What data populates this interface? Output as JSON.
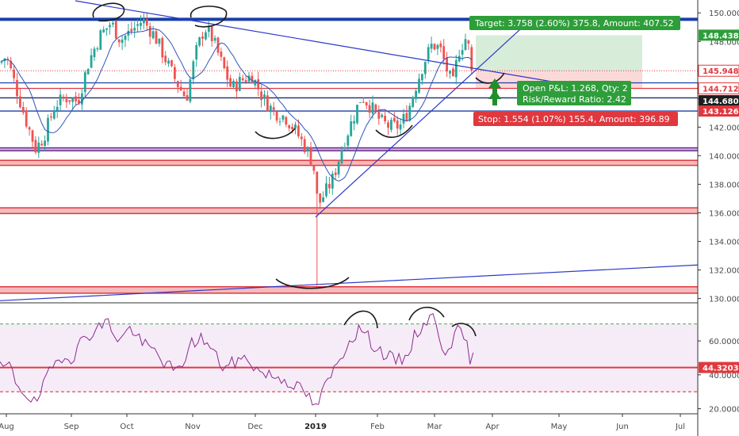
{
  "chart_data": {
    "type": "candlestick",
    "price_axis": {
      "ylim": [
        129.7,
        150.9
      ],
      "ticks": [
        "150.0000",
        "148.0000",
        "146.0000",
        "144.0000",
        "142.0000",
        "140.0000",
        "138.0000",
        "136.0000",
        "134.0000",
        "132.0000",
        "130.0000"
      ],
      "tick_values": [
        150,
        148,
        146,
        144,
        142,
        140,
        138,
        136,
        134,
        132,
        130
      ]
    },
    "rsi_axis": {
      "ylim": [
        17,
        82
      ],
      "ticks": [
        "60.0000",
        "40.0000",
        "20.0000"
      ],
      "tick_values": [
        60,
        40,
        20
      ],
      "upper_band": 70,
      "lower_band": 30
    },
    "x_axis": {
      "ticks": [
        {
          "label": "Aug",
          "bold": false
        },
        {
          "label": "Sep",
          "bold": false
        },
        {
          "label": "Oct",
          "bold": false
        },
        {
          "label": "Nov",
          "bold": false
        },
        {
          "label": "Dec",
          "bold": false
        },
        {
          "label": "2019",
          "bold": true
        },
        {
          "label": "Feb",
          "bold": false
        },
        {
          "label": "Mar",
          "bold": false
        },
        {
          "label": "Apr",
          "bold": false
        },
        {
          "label": "May",
          "bold": false
        },
        {
          "label": "Jun",
          "bold": false
        },
        {
          "label": "Jul",
          "bold": false
        }
      ]
    },
    "price_tags": [
      {
        "label": "148.438",
        "value": 148.438,
        "bg": "#2e9e3a",
        "fg": "#ffffff"
      },
      {
        "label": "145.948",
        "value": 145.948,
        "bg": "#ffffff",
        "fg": "#e0383e",
        "border": "#e0383e"
      },
      {
        "label": "144.712",
        "value": 144.712,
        "bg": "#ffffff",
        "fg": "#e0383e",
        "border": "#e0383e"
      },
      {
        "label": "144.680",
        "value": 143.85,
        "bg": "#1e1e1e",
        "fg": "#ffffff"
      },
      {
        "label": "143.126",
        "value": 143.126,
        "bg": "#e0383e",
        "fg": "#ffffff"
      }
    ],
    "rsi_tag": {
      "label": "44.3203",
      "value": 44.3203,
      "bg": "#e0383e",
      "fg": "#ffffff"
    },
    "horizontal_levels": [
      {
        "value": 149.55,
        "color": "#1a3fa8",
        "kind": "thick"
      },
      {
        "value": 145.1,
        "color": "#1a3fa8",
        "kind": "line"
      },
      {
        "value": 144.712,
        "color": "#e0383e",
        "kind": "line"
      },
      {
        "value": 144.05,
        "color": "#1e2a6e",
        "kind": "line"
      },
      {
        "value": 143.126,
        "color": "#1a3fa8",
        "kind": "line"
      },
      {
        "value": 140.45,
        "color": "#6b2a8f",
        "kind": "band",
        "height": 0.2
      },
      {
        "value": 139.5,
        "color": "#e0383e",
        "kind": "band",
        "height": 0.35
      },
      {
        "value": 136.15,
        "color": "#e0383e",
        "kind": "band",
        "height": 0.4
      },
      {
        "value": 130.6,
        "color": "#e0383e",
        "kind": "band",
        "height": 0.45
      }
    ],
    "position": {
      "target_box": {
        "label": "Target: 3.758 (2.60%) 375.8, Amount: 407.52"
      },
      "stats_box": {
        "line1": "Open P&L: 1.268, Qty: 2",
        "line2": "Risk/Reward Ratio: 2.42"
      },
      "stop_box": {
        "label": "Stop: 1.554 (1.07%) 155.4, Amount: 396.89"
      }
    },
    "candles": [],
    "rsi_series": []
  }
}
